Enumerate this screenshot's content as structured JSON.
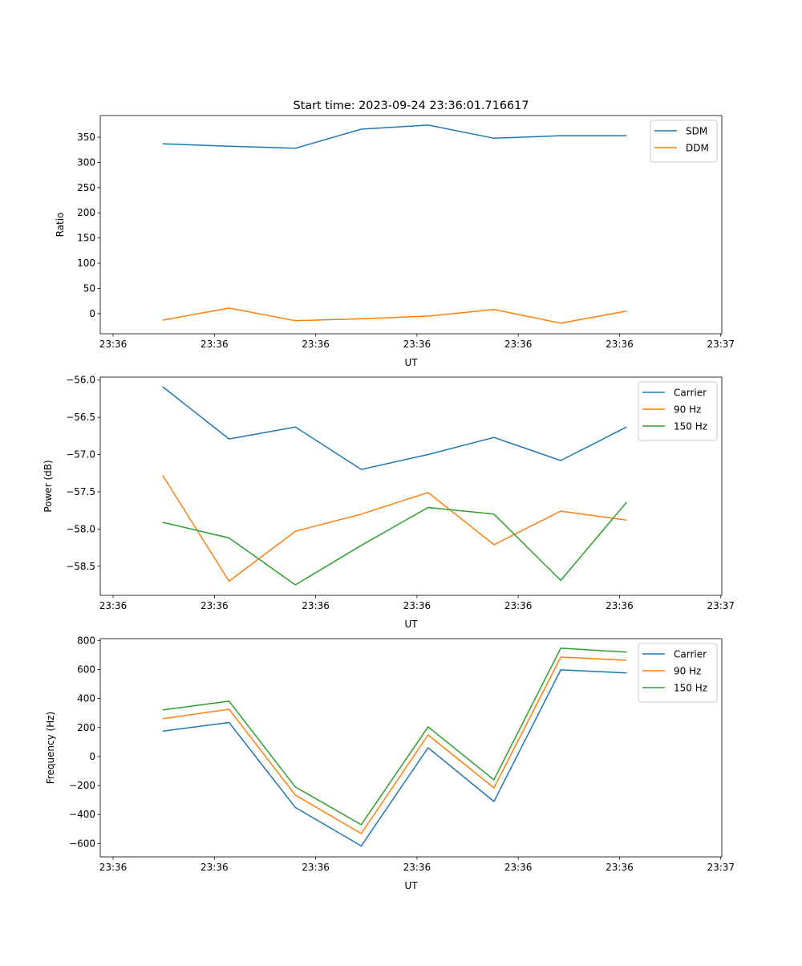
{
  "chart_data": [
    {
      "type": "line",
      "title": "Start time: 2023-09-24 23:36:01.716617",
      "xlabel": "UT",
      "ylabel": "Ratio",
      "x_unit": "seconds after 23:36:00",
      "x": [
        4.9,
        11.45,
        18.0,
        24.5,
        31.1,
        37.6,
        44.2,
        50.7
      ],
      "xlim": [
        -1.27,
        60.1
      ],
      "xticks": [
        0,
        10,
        20,
        30,
        40,
        50,
        60
      ],
      "xtick_labels": [
        "23:36",
        "23:36",
        "23:36",
        "23:36",
        "23:36",
        "23:36",
        "23:37"
      ],
      "ylim": [
        -40,
        393
      ],
      "yticks": [
        0,
        50,
        100,
        150,
        200,
        250,
        300,
        350
      ],
      "ytick_labels": [
        "0",
        "50",
        "100",
        "150",
        "200",
        "250",
        "300",
        "350"
      ],
      "legend": "top-right",
      "series": [
        {
          "name": "SDM",
          "color": "#1f77b4",
          "values": [
            337,
            332,
            328,
            366,
            374,
            348,
            353,
            353
          ]
        },
        {
          "name": "DDM",
          "color": "#ff7f0e",
          "values": [
            -13,
            11,
            -14,
            -10,
            -5,
            8,
            -19,
            5
          ]
        }
      ]
    },
    {
      "type": "line",
      "title": "",
      "xlabel": "UT",
      "ylabel": "Power (dB)",
      "x_unit": "seconds after 23:36:00",
      "x": [
        4.9,
        11.45,
        18.0,
        24.5,
        31.1,
        37.6,
        44.2,
        50.7
      ],
      "xlim": [
        -1.27,
        60.1
      ],
      "xticks": [
        0,
        10,
        20,
        30,
        40,
        50,
        60
      ],
      "xtick_labels": [
        "23:36",
        "23:36",
        "23:36",
        "23:36",
        "23:36",
        "23:36",
        "23:37"
      ],
      "ylim": [
        -58.89,
        -55.96
      ],
      "yticks": [
        -58.5,
        -58.0,
        -57.5,
        -57.0,
        -56.5,
        -56.0
      ],
      "ytick_labels": [
        "−58.5",
        "−58.0",
        "−57.5",
        "−57.0",
        "−56.5",
        "−56.0"
      ],
      "legend": "top-right",
      "series": [
        {
          "name": "Carrier",
          "color": "#1f77b4",
          "values": [
            -56.09,
            -56.79,
            -56.63,
            -57.2,
            -57.0,
            -56.77,
            -57.08,
            -56.63
          ]
        },
        {
          "name": "90 Hz",
          "color": "#ff7f0e",
          "values": [
            -57.28,
            -58.7,
            -58.03,
            -57.8,
            -57.51,
            -58.21,
            -57.76,
            -57.88
          ]
        },
        {
          "name": "150 Hz",
          "color": "#2ca02c",
          "values": [
            -57.91,
            -58.12,
            -58.75,
            -58.22,
            -57.71,
            -57.8,
            -58.69,
            -57.64
          ]
        }
      ]
    },
    {
      "type": "line",
      "title": "",
      "xlabel": "UT",
      "ylabel": "Frequency (Hz)",
      "x_unit": "seconds after 23:36:00",
      "x": [
        4.9,
        11.45,
        18.0,
        24.5,
        31.1,
        37.6,
        44.2,
        50.7
      ],
      "xlim": [
        -1.27,
        60.1
      ],
      "xticks": [
        0,
        10,
        20,
        30,
        40,
        50,
        60
      ],
      "xtick_labels": [
        "23:36",
        "23:36",
        "23:36",
        "23:36",
        "23:36",
        "23:36",
        "23:37"
      ],
      "ylim": [
        -692,
        813
      ],
      "yticks": [
        -600,
        -400,
        -200,
        0,
        200,
        400,
        600,
        800
      ],
      "ytick_labels": [
        "−600",
        "−400",
        "−200",
        "0",
        "200",
        "400",
        "600",
        "800"
      ],
      "legend": "top-right",
      "series": [
        {
          "name": "Carrier",
          "color": "#1f77b4",
          "values": [
            175,
            235,
            -351,
            -617,
            61,
            -310,
            598,
            576
          ]
        },
        {
          "name": "90 Hz",
          "color": "#ff7f0e",
          "values": [
            260,
            326,
            -266,
            -531,
            149,
            -216,
            686,
            664
          ]
        },
        {
          "name": "150 Hz",
          "color": "#2ca02c",
          "values": [
            321,
            382,
            -210,
            -470,
            205,
            -160,
            747,
            720
          ]
        }
      ]
    }
  ]
}
